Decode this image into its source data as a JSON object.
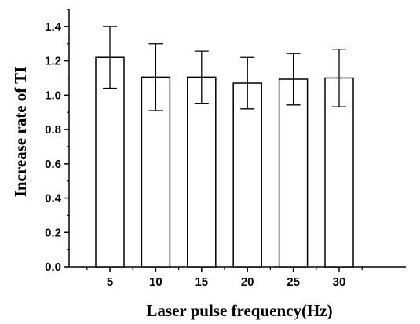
{
  "chart_data": {
    "type": "bar",
    "categories": [
      "5",
      "10",
      "15",
      "20",
      "25",
      "30"
    ],
    "values": [
      1.22,
      1.105,
      1.105,
      1.07,
      1.093,
      1.1
    ],
    "error": [
      0.18,
      0.195,
      0.152,
      0.15,
      0.15,
      0.168
    ],
    "xlabel": "Laser pulse frequency(Hz)",
    "ylabel": "Increase rate of TI",
    "ylim": [
      0.0,
      1.5
    ],
    "yticks": [
      "0.0",
      "0.2",
      "0.4",
      "0.6",
      "0.8",
      "1.0",
      "1.2",
      "1.4"
    ],
    "grid": false,
    "bar_fill": "#ffffff",
    "bar_stroke": "#000000"
  }
}
